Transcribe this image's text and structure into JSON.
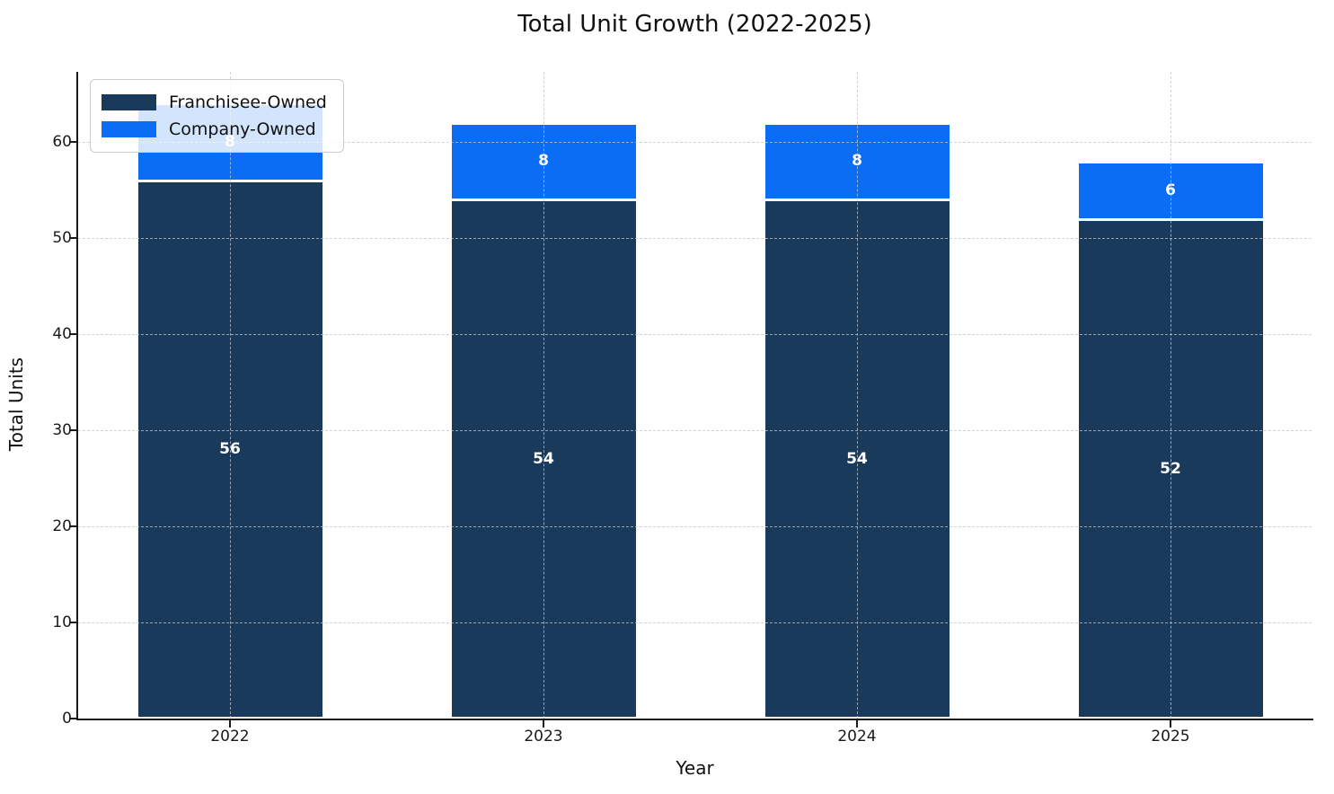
{
  "chart_data": {
    "type": "bar",
    "stacked": true,
    "title": "Total Unit Growth (2022-2025)",
    "xlabel": "Year",
    "ylabel": "Total Units",
    "categories": [
      "2022",
      "2023",
      "2024",
      "2025"
    ],
    "series": [
      {
        "name": "Franchisee-Owned",
        "color": "#1a3a5c",
        "values": [
          56,
          54,
          54,
          52
        ]
      },
      {
        "name": "Company-Owned",
        "color": "#0b6cf4",
        "values": [
          8,
          8,
          8,
          6
        ]
      }
    ],
    "totals": [
      64,
      62,
      62,
      58
    ],
    "yticks": [
      0,
      10,
      20,
      30,
      40,
      50,
      60
    ],
    "ylim": [
      0,
      67.3
    ],
    "grid": "dashed",
    "legend_position": "upper-left",
    "bar_label_color": "#ffffff",
    "axis_color": "#1a1a1a",
    "background_color": "#ffffff"
  }
}
